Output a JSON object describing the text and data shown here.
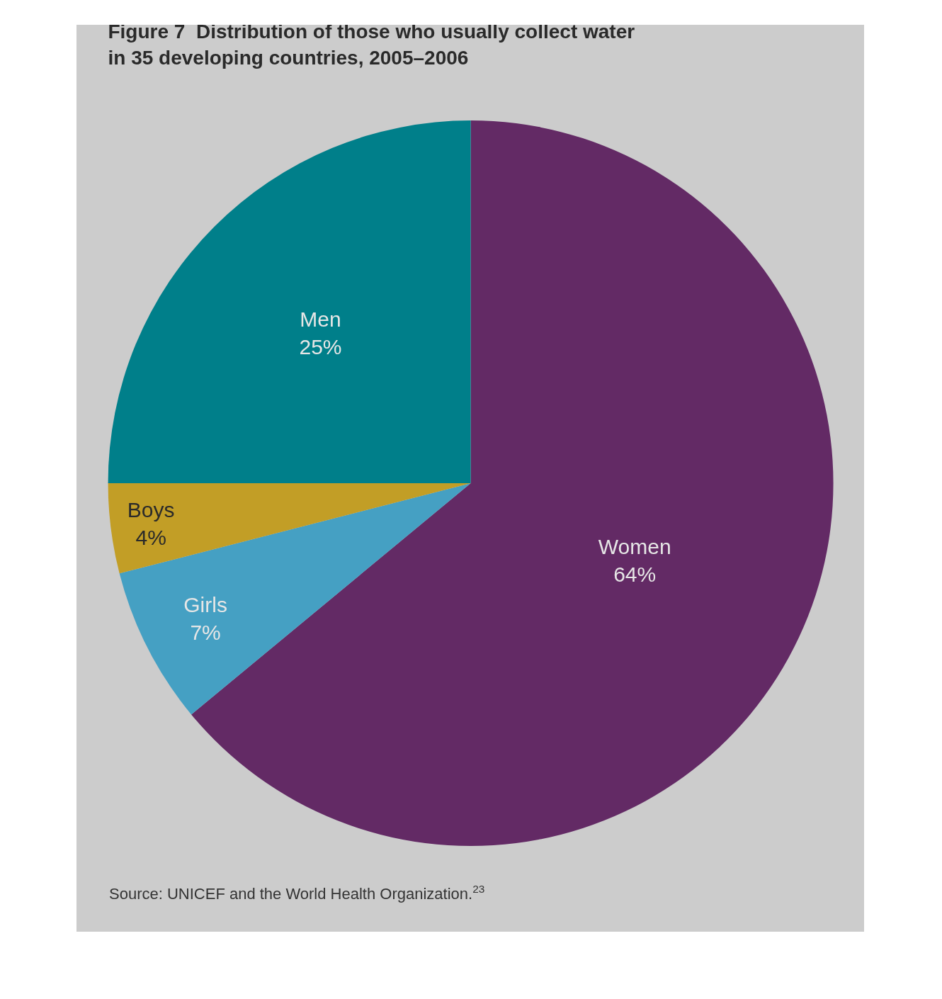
{
  "chart_data": {
    "type": "pie",
    "title": "Figure 7  Distribution of those who usually collect water\nin 35 developing countries, 2005–2006",
    "categories": [
      "Women",
      "Girls",
      "Boys",
      "Men"
    ],
    "values": [
      64,
      7,
      4,
      25
    ],
    "value_labels": [
      "64%",
      "7%",
      "4%",
      "25%"
    ],
    "colors": [
      "#632a65",
      "#45a0c3",
      "#c29e26",
      "#007f8a"
    ],
    "annotations": [
      "Source: UNICEF and the World Health Organization.$^{23}$"
    ]
  }
}
